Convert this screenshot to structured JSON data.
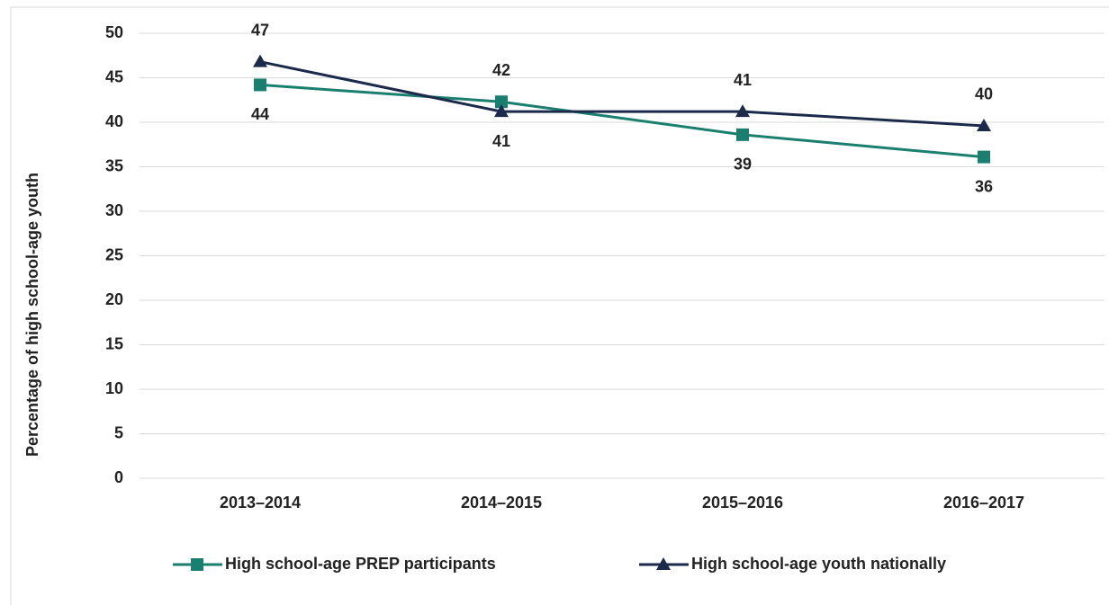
{
  "chart_data": {
    "type": "line",
    "y_label": "Percentage of high school-age youth",
    "categories": [
      "2013–2014",
      "2014–2015",
      "2015–2016",
      "2016–2017"
    ],
    "series": [
      {
        "name": "High school-age PREP participants",
        "color": "#1a7f6e",
        "marker": "square",
        "values": [
          44.2,
          42.3,
          38.6,
          36.1
        ],
        "value_labels": [
          "44",
          "42",
          "39",
          "36"
        ]
      },
      {
        "name": "High school-age youth nationally",
        "color": "#1b2a4a",
        "marker": "triangle",
        "values": [
          46.8,
          41.2,
          41.2,
          39.6
        ],
        "value_labels": [
          "47",
          "41",
          "41",
          "40"
        ]
      }
    ],
    "ylim": [
      0,
      50
    ],
    "yticks": [
      0,
      5,
      10,
      15,
      20,
      25,
      30,
      35,
      40,
      45,
      50
    ],
    "grid": true,
    "legend": "bottom"
  }
}
